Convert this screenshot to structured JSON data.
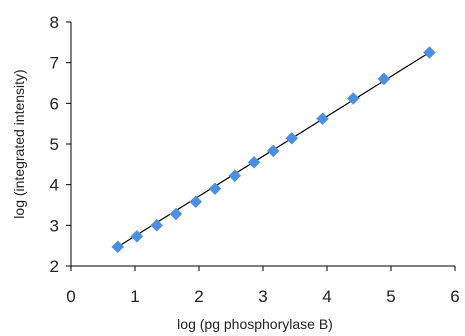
{
  "chart_data": {
    "type": "scatter",
    "title": "",
    "xlabel": "log (pg  phosphorylase B)",
    "ylabel": "log (integrated intensity)",
    "xlim": [
      0,
      6
    ],
    "ylim": [
      2,
      8
    ],
    "xticks": [
      0,
      1,
      2,
      3,
      4,
      5,
      6
    ],
    "yticks": [
      2,
      3,
      4,
      5,
      6,
      7,
      8
    ],
    "grid": false,
    "legend": "none",
    "marker": "diamond",
    "marker_color": "#4a90e2",
    "trendline": {
      "type": "linear",
      "color": "#000000",
      "from": [
        0.73,
        2.47
      ],
      "to": [
        5.6,
        7.25
      ]
    },
    "series": [
      {
        "x": [
          0.73,
          1.03,
          1.34,
          1.64,
          1.95,
          2.25,
          2.56,
          2.86,
          3.16,
          3.45,
          3.93,
          4.41,
          4.89,
          5.6
        ],
        "y": [
          2.47,
          2.73,
          3.0,
          3.28,
          3.58,
          3.9,
          4.22,
          4.55,
          4.83,
          5.14,
          5.62,
          6.12,
          6.6,
          7.25
        ]
      }
    ]
  }
}
